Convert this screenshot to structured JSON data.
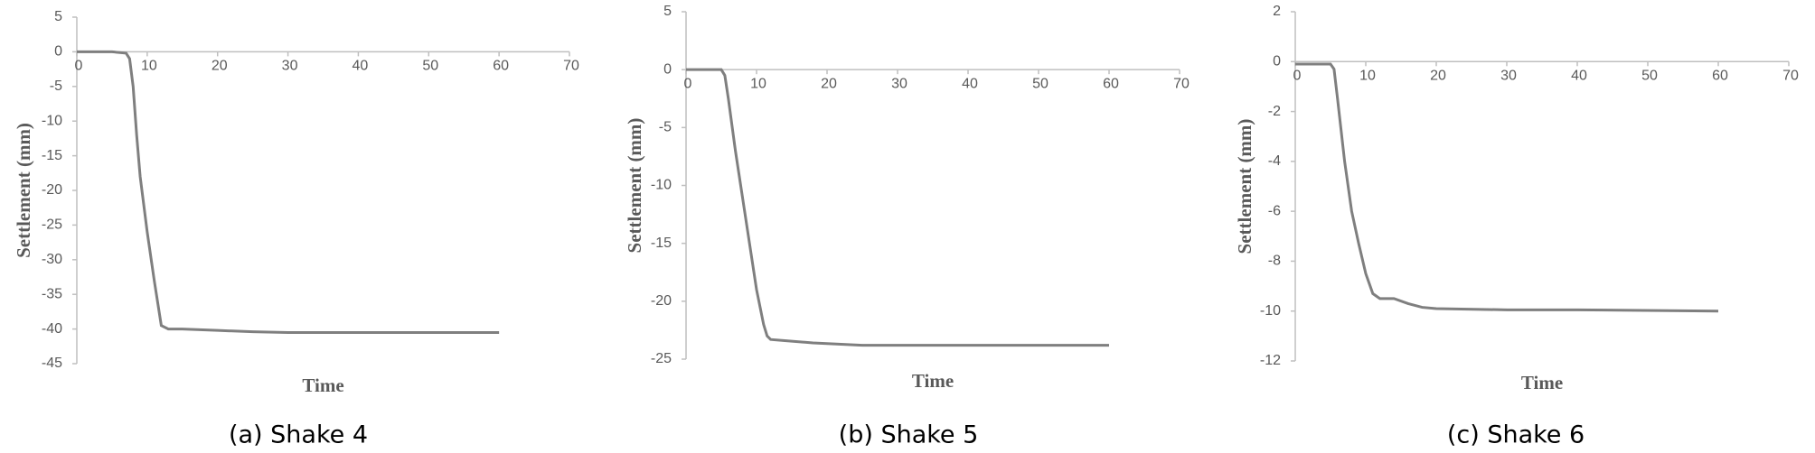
{
  "chart_data": [
    {
      "type": "line",
      "caption": "(a) Shake 4",
      "xlabel": "Time",
      "ylabel": "Settlement (mm)",
      "color": "#7f7f7f",
      "xlim": [
        0,
        70
      ],
      "xticks": [
        0,
        10,
        20,
        30,
        40,
        50,
        60,
        70
      ],
      "ylim": [
        -45,
        5
      ],
      "yticks": [
        -45,
        -40,
        -35,
        -30,
        -25,
        -20,
        -15,
        -10,
        -5,
        0,
        5
      ],
      "x": [
        0,
        5,
        7,
        7.5,
        8,
        8.5,
        9,
        10,
        11,
        12,
        13,
        15,
        20,
        25,
        30,
        40,
        50,
        60
      ],
      "values": [
        0,
        0,
        -0.2,
        -1,
        -5,
        -12,
        -18,
        -26,
        -33,
        -39.5,
        -40,
        -40,
        -40.2,
        -40.4,
        -40.5,
        -40.5,
        -40.5,
        -40.5
      ]
    },
    {
      "type": "line",
      "caption": "(b) Shake 5",
      "xlabel": "Time",
      "ylabel": "Settlement (mm)",
      "color": "#7f7f7f",
      "xlim": [
        0,
        70
      ],
      "xticks": [
        0,
        10,
        20,
        30,
        40,
        50,
        60,
        70
      ],
      "ylim": [
        -25,
        5
      ],
      "yticks": [
        -25,
        -20,
        -15,
        -10,
        -5,
        0,
        5
      ],
      "x": [
        0,
        5,
        5.5,
        6,
        7,
        8,
        9,
        10,
        11,
        11.5,
        12,
        14,
        18,
        25,
        40,
        60
      ],
      "values": [
        0,
        0,
        -0.5,
        -2.5,
        -7,
        -11,
        -15,
        -19,
        -22,
        -23,
        -23.3,
        -23.4,
        -23.6,
        -23.8,
        -23.8,
        -23.8
      ]
    },
    {
      "type": "line",
      "caption": "(c) Shake 6",
      "xlabel": "Time",
      "ylabel": "Settlement (mm)",
      "color": "#7f7f7f",
      "xlim": [
        0,
        70
      ],
      "xticks": [
        0,
        10,
        20,
        30,
        40,
        50,
        60,
        70
      ],
      "ylim": [
        -12,
        2
      ],
      "yticks": [
        -12,
        -10,
        -8,
        -6,
        -4,
        -2,
        0,
        2
      ],
      "x": [
        0,
        5,
        5.5,
        6,
        7,
        8,
        9,
        10,
        11,
        12,
        14,
        16,
        18,
        20,
        30,
        40,
        60
      ],
      "values": [
        -0.1,
        -0.1,
        -0.3,
        -1.5,
        -4,
        -6,
        -7.3,
        -8.5,
        -9.3,
        -9.5,
        -9.5,
        -9.7,
        -9.85,
        -9.9,
        -9.95,
        -9.95,
        -10
      ]
    }
  ]
}
